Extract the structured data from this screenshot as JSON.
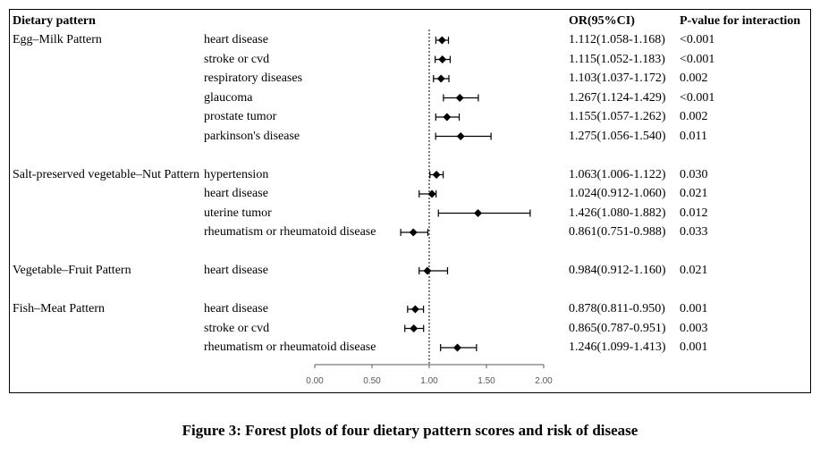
{
  "chart_data": {
    "type": "forest",
    "headers": {
      "pattern": "Dietary pattern",
      "or": "OR(95%CI)",
      "p": "P-value for interaction"
    },
    "x_ticks": [
      "0.00",
      "0.50",
      "1.00",
      "1.50",
      "2.00"
    ],
    "xlim": [
      0,
      2
    ],
    "reference_line": 1.0,
    "groups": [
      {
        "pattern": "Egg–Milk Pattern",
        "rows": [
          {
            "disease": "heart disease",
            "or": 1.112,
            "lo": 1.058,
            "hi": 1.168,
            "or_text": "1.112(1.058-1.168)",
            "p": "<0.001"
          },
          {
            "disease": "stroke or cvd",
            "or": 1.115,
            "lo": 1.052,
            "hi": 1.183,
            "or_text": "1.115(1.052-1.183)",
            "p": "<0.001"
          },
          {
            "disease": "respiratory diseases",
            "or": 1.103,
            "lo": 1.037,
            "hi": 1.172,
            "or_text": "1.103(1.037-1.172)",
            "p": "0.002"
          },
          {
            "disease": "glaucoma",
            "or": 1.267,
            "lo": 1.124,
            "hi": 1.429,
            "or_text": "1.267(1.124-1.429)",
            "p": "<0.001"
          },
          {
            "disease": "prostate tumor",
            "or": 1.155,
            "lo": 1.057,
            "hi": 1.262,
            "or_text": "1.155(1.057-1.262)",
            "p": "0.002"
          },
          {
            "disease": "parkinson's disease",
            "or": 1.275,
            "lo": 1.056,
            "hi": 1.54,
            "or_text": "1.275(1.056-1.540)",
            "p": "0.011"
          }
        ]
      },
      {
        "pattern": "Salt-preserved vegetable–Nut Pattern",
        "rows": [
          {
            "disease": "hypertension",
            "or": 1.063,
            "lo": 1.006,
            "hi": 1.122,
            "or_text": "1.063(1.006-1.122)",
            "p": "0.030"
          },
          {
            "disease": "heart disease",
            "or": 1.024,
            "lo": 0.912,
            "hi": 1.06,
            "or_text": "1.024(0.912-1.060)",
            "p": "0.021"
          },
          {
            "disease": "uterine tumor",
            "or": 1.426,
            "lo": 1.08,
            "hi": 1.882,
            "or_text": "1.426(1.080-1.882)",
            "p": "0.012"
          },
          {
            "disease": "rheumatism or rheumatoid disease",
            "or": 0.861,
            "lo": 0.751,
            "hi": 0.988,
            "or_text": "0.861(0.751-0.988)",
            "p": "0.033"
          }
        ]
      },
      {
        "pattern": "Vegetable–Fruit Pattern",
        "rows": [
          {
            "disease": "heart disease",
            "or": 0.984,
            "lo": 0.912,
            "hi": 1.16,
            "or_text": "0.984(0.912-1.160)",
            "p": "0.021"
          }
        ]
      },
      {
        "pattern": "Fish–Meat Pattern",
        "rows": [
          {
            "disease": "heart disease",
            "or": 0.878,
            "lo": 0.811,
            "hi": 0.95,
            "or_text": "0.878(0.811-0.950)",
            "p": "0.001"
          },
          {
            "disease": "stroke or cvd",
            "or": 0.865,
            "lo": 0.787,
            "hi": 0.951,
            "or_text": "0.865(0.787-0.951)",
            "p": "0.003"
          },
          {
            "disease": "rheumatism or rheumatoid disease",
            "or": 1.246,
            "lo": 1.099,
            "hi": 1.413,
            "or_text": "1.246(1.099-1.413)",
            "p": "0.001"
          }
        ]
      }
    ]
  },
  "caption": "Figure 3: Forest plots of four dietary pattern scores and risk of disease"
}
